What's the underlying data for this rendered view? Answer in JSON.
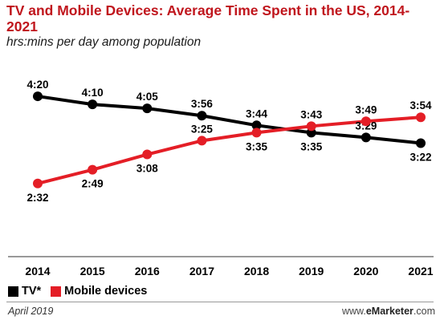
{
  "title": "TV and Mobile Devices: Average Time Spent in the US, 2014-2021",
  "subtitle": "hrs:mins per day among population",
  "legend": [
    {
      "label": "TV*",
      "color": "#000000"
    },
    {
      "label": "Mobile devices",
      "color": "#e41e26"
    }
  ],
  "footer": {
    "source_date": "April 2019",
    "brand_prefix": "www.",
    "brand_bold": "eMarketer",
    "brand_suffix": ".com"
  },
  "chart_data": {
    "type": "line",
    "title": "TV and Mobile Devices: Average Time Spent in the US, 2014-2021",
    "subtitle": "hrs:mins per day among population",
    "categories": [
      "2014",
      "2015",
      "2016",
      "2017",
      "2018",
      "2019",
      "2020",
      "2021"
    ],
    "series": [
      {
        "name": "TV*",
        "color": "#000000",
        "values_minutes": [
          260,
          250,
          245,
          236,
          224,
          215,
          209,
          202
        ],
        "labels": [
          "4:20",
          "4:10",
          "4:05",
          "3:56",
          "3:44",
          "3:35",
          "3:29",
          "3:22"
        ]
      },
      {
        "name": "Mobile devices",
        "color": "#e41e26",
        "values_minutes": [
          152,
          169,
          188,
          205,
          215,
          223,
          229,
          234
        ],
        "labels": [
          "2:32",
          "2:49",
          "3:08",
          "3:25",
          "3:35",
          "3:43",
          "3:49",
          "3:54"
        ]
      }
    ],
    "ylim_minutes": [
      120,
      270
    ],
    "grid": false,
    "legend_position": "bottom-left"
  }
}
